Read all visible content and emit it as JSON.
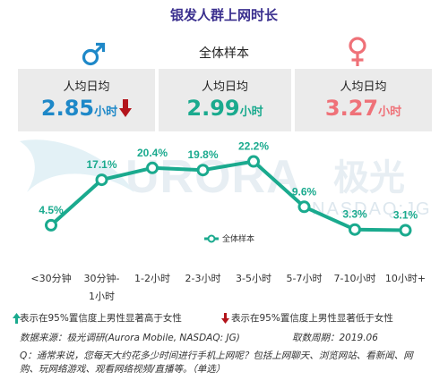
{
  "title": "银发人群上网时长",
  "sample_label": "全体样本",
  "cards": {
    "male": {
      "label": "人均日均",
      "value": "2.85",
      "unit": "小时",
      "icon": "male-symbol-icon",
      "indicator": "down-arrow"
    },
    "all": {
      "label": "人均日均",
      "value": "2.99",
      "unit": "小时"
    },
    "female": {
      "label": "人均日均",
      "value": "3.27",
      "unit": "小时",
      "icon": "female-symbol-icon"
    }
  },
  "watermark": {
    "brand": "URORA",
    "brand_cn": "极光",
    "ticker": "NASDAQ:JG"
  },
  "chart_data": {
    "type": "line",
    "categories": [
      "<30分钟",
      "30分钟-1小时",
      "1-2小时",
      "2-3小时",
      "3-5小时",
      "5-7小时",
      "7-10小时",
      "10小时+"
    ],
    "category_lines": [
      [
        "<30分钟"
      ],
      [
        "30分钟-",
        "1小时"
      ],
      [
        "1-2小时"
      ],
      [
        "2-3小时"
      ],
      [
        "3-5小时"
      ],
      [
        "5-7小时"
      ],
      [
        "7-10小时"
      ],
      [
        "10小时+"
      ]
    ],
    "series": [
      {
        "name": "全体样本",
        "values": [
          4.5,
          17.1,
          20.4,
          19.8,
          22.2,
          9.6,
          3.3,
          3.1
        ],
        "labels": [
          "4.5%",
          "17.1%",
          "20.4%",
          "19.8%",
          "22.2%",
          "9.6%",
          "3.3%",
          "3.1%"
        ]
      }
    ],
    "ylim": [
      0,
      25
    ],
    "legend_position": "center",
    "grid": false
  },
  "notes": {
    "up": "表示在95%置信度上男性显著高于女性",
    "down": "表示在95%置信度上男性显著低于女性"
  },
  "source": "数据来源：极光调研(Aurora Mobile, NASDAQ: JG)",
  "period": "取数周期：2019.06",
  "question": "Q：通常来说，您每天大约花多少时间进行手机上网呢？包括上网聊天、浏览网站、看新闻、网购、玩网络游戏、观看网络视频/直播等。（单选）",
  "colors": {
    "title": "#3a2f8e",
    "male": "#1e88c8",
    "all": "#1aaa8e",
    "female": "#ef7178",
    "up": "#1aaa8e",
    "down": "#b3141b"
  }
}
